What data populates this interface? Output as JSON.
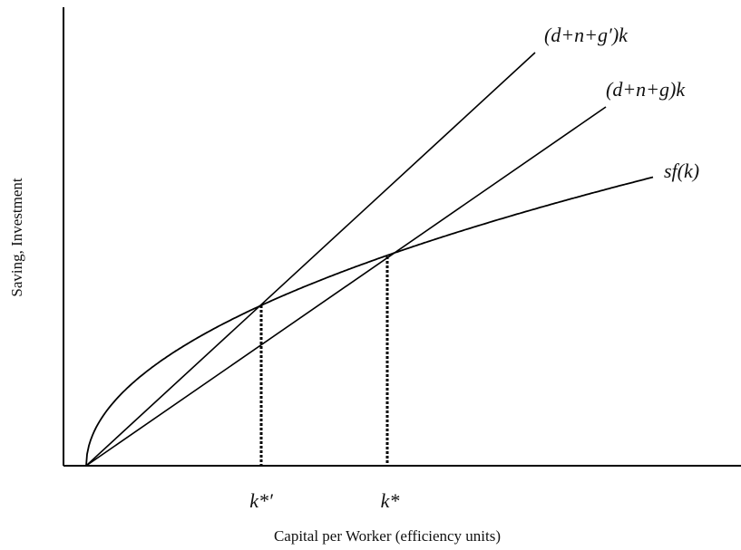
{
  "labels": {
    "line_high": "(d+n+g′)k",
    "line_low": "(d+n+g)k",
    "saving_curve": "sf(k)",
    "k_star_prime": "k*′",
    "k_star": "k*"
  },
  "x_axis_label": "Capital per Worker (efficiency units)",
  "y_axis_label": "Saving, Investment"
}
